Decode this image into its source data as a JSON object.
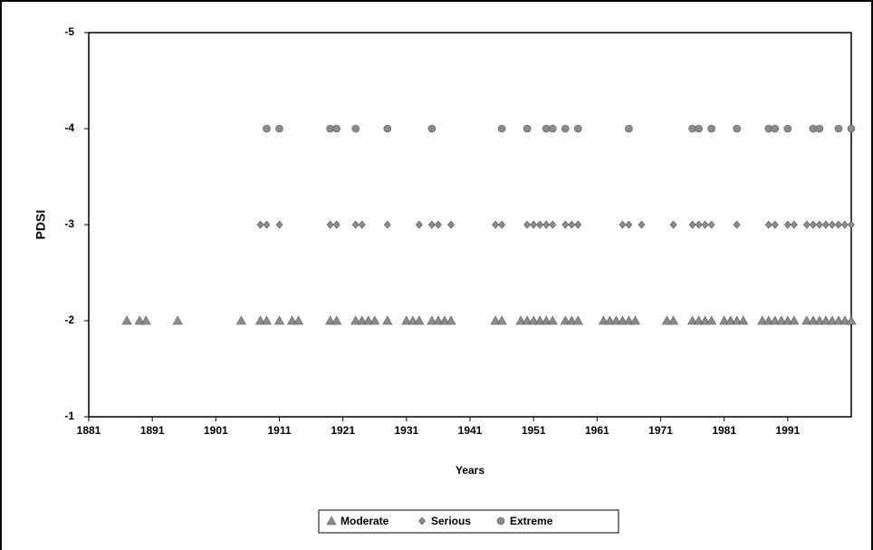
{
  "chart_data": {
    "type": "scatter",
    "x_label": "Years",
    "y_label": "PDSI",
    "xlim": [
      1881,
      2001
    ],
    "xticks": [
      1881,
      1891,
      1901,
      1911,
      1921,
      1931,
      1941,
      1951,
      1961,
      1971,
      1981,
      1991
    ],
    "ylim": [
      -5,
      -1
    ],
    "yticks": [
      -5,
      -4,
      -3,
      -2,
      -1
    ],
    "y_inverted": true,
    "legend": "bottom",
    "series": [
      {
        "name": "Moderate",
        "marker": "triangle",
        "color": "#8c8c8c",
        "x": [
          1887,
          1889,
          1890,
          1895,
          1905,
          1908,
          1909,
          1911,
          1913,
          1914,
          1919,
          1920,
          1923,
          1924,
          1925,
          1926,
          1928,
          1931,
          1932,
          1933,
          1935,
          1936,
          1937,
          1938,
          1945,
          1946,
          1949,
          1950,
          1951,
          1952,
          1953,
          1954,
          1956,
          1957,
          1958,
          1962,
          1963,
          1964,
          1965,
          1966,
          1967,
          1972,
          1973,
          1976,
          1977,
          1978,
          1979,
          1981,
          1982,
          1983,
          1984,
          1987,
          1988,
          1989,
          1990,
          1991,
          1992,
          1994,
          1995,
          1996,
          1997,
          1998,
          1999,
          2000,
          2001
        ],
        "values": [
          -2,
          -2,
          -2,
          -2,
          -2,
          -2,
          -2,
          -2,
          -2,
          -2,
          -2,
          -2,
          -2,
          -2,
          -2,
          -2,
          -2,
          -2,
          -2,
          -2,
          -2,
          -2,
          -2,
          -2,
          -2,
          -2,
          -2,
          -2,
          -2,
          -2,
          -2,
          -2,
          -2,
          -2,
          -2,
          -2,
          -2,
          -2,
          -2,
          -2,
          -2,
          -2,
          -2,
          -2,
          -2,
          -2,
          -2,
          -2,
          -2,
          -2,
          -2,
          -2,
          -2,
          -2,
          -2,
          -2,
          -2,
          -2,
          -2,
          -2,
          -2,
          -2,
          -2,
          -2,
          -2
        ]
      },
      {
        "name": "Serious",
        "marker": "diamond",
        "color": "#8c8c8c",
        "x": [
          1908,
          1909,
          1911,
          1919,
          1920,
          1923,
          1924,
          1928,
          1933,
          1935,
          1936,
          1938,
          1945,
          1946,
          1950,
          1951,
          1952,
          1953,
          1954,
          1956,
          1957,
          1958,
          1965,
          1966,
          1968,
          1973,
          1976,
          1977,
          1978,
          1979,
          1983,
          1988,
          1989,
          1991,
          1992,
          1994,
          1995,
          1996,
          1997,
          1998,
          1999,
          2000,
          2001
        ],
        "values": [
          -3,
          -3,
          -3,
          -3,
          -3,
          -3,
          -3,
          -3,
          -3,
          -3,
          -3,
          -3,
          -3,
          -3,
          -3,
          -3,
          -3,
          -3,
          -3,
          -3,
          -3,
          -3,
          -3,
          -3,
          -3,
          -3,
          -3,
          -3,
          -3,
          -3,
          -3,
          -3,
          -3,
          -3,
          -3,
          -3,
          -3,
          -3,
          -3,
          -3,
          -3,
          -3,
          -3
        ]
      },
      {
        "name": "Extreme",
        "marker": "circle",
        "color": "#8c8c8c",
        "x": [
          1909,
          1911,
          1919,
          1920,
          1923,
          1928,
          1935,
          1946,
          1950,
          1953,
          1954,
          1956,
          1958,
          1966,
          1976,
          1977,
          1979,
          1983,
          1988,
          1989,
          1991,
          1995,
          1996,
          1999,
          2001
        ],
        "values": [
          -4,
          -4,
          -4,
          -4,
          -4,
          -4,
          -4,
          -4,
          -4,
          -4,
          -4,
          -4,
          -4,
          -4,
          -4,
          -4,
          -4,
          -4,
          -4,
          -4,
          -4,
          -4,
          -4,
          -4,
          -4
        ]
      }
    ]
  }
}
